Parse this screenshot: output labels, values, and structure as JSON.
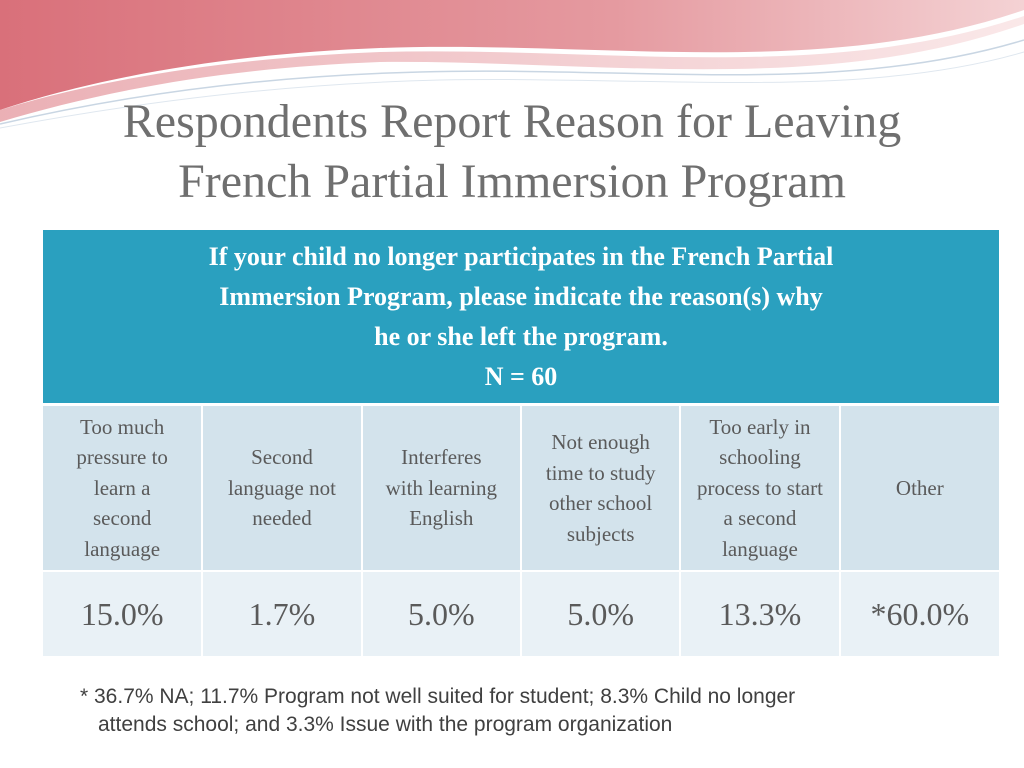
{
  "slide": {
    "title_lines": [
      "Respondents Report Reason for Leaving",
      "French Partial Immersion Program"
    ]
  },
  "table": {
    "header_lines": [
      "If your child no longer participates in the French Partial",
      "Immersion Program, please indicate the reason(s) why",
      "he or she left the program.",
      "N = 60"
    ],
    "columns": [
      {
        "lines": [
          "Too much",
          "pressure to",
          "learn a",
          "second",
          "language"
        ],
        "value": "15.0%"
      },
      {
        "lines": [
          "Second",
          "language not",
          "needed"
        ],
        "value": "1.7%"
      },
      {
        "lines": [
          "Interferes",
          "with learning",
          "English"
        ],
        "value": "5.0%"
      },
      {
        "lines": [
          "Not enough",
          "time to study",
          "other school",
          "subjects"
        ],
        "value": "5.0%"
      },
      {
        "lines": [
          "Too early in",
          "schooling",
          "process to start",
          "a second",
          "language"
        ],
        "value": "13.3%"
      },
      {
        "lines": [
          "Other"
        ],
        "value": "*60.0%"
      }
    ]
  },
  "footnote": {
    "line1": "* 36.7% NA; 11.7% Program not well suited for student; 8.3% Child no longer",
    "line2": "attends school; and 3.3% Issue with the program organization"
  },
  "colors": {
    "header_bg": "#2aa0bf",
    "category_bg": "#d3e3ec",
    "value_bg": "#e9f1f6",
    "title_text": "#6f6f6f",
    "wave_accent": "#d9707a"
  }
}
